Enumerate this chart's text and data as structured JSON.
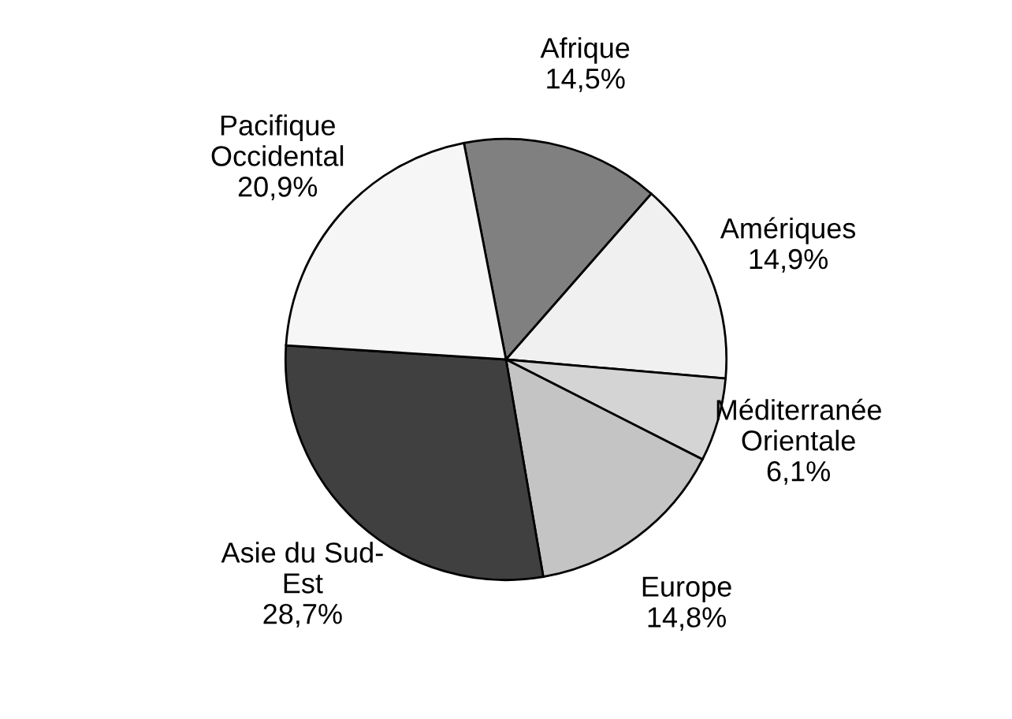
{
  "chart_data": {
    "type": "pie",
    "categories": [
      "Afrique",
      "Amériques",
      "Méditerranée\nOrientale",
      "Europe",
      "Asie du Sud-\nEst",
      "Pacifique\nOccidental"
    ],
    "values": [
      14.5,
      14.9,
      6.1,
      14.8,
      28.7,
      20.9
    ],
    "value_labels": [
      "14,5%",
      "14,9%",
      "6,1%",
      "14,8%",
      "28,7%",
      "20,9%"
    ],
    "colors": [
      "#808080",
      "#f0f0f0",
      "#d4d4d4",
      "#c4c4c4",
      "#404040",
      "#f6f6f6"
    ],
    "legend": false
  }
}
